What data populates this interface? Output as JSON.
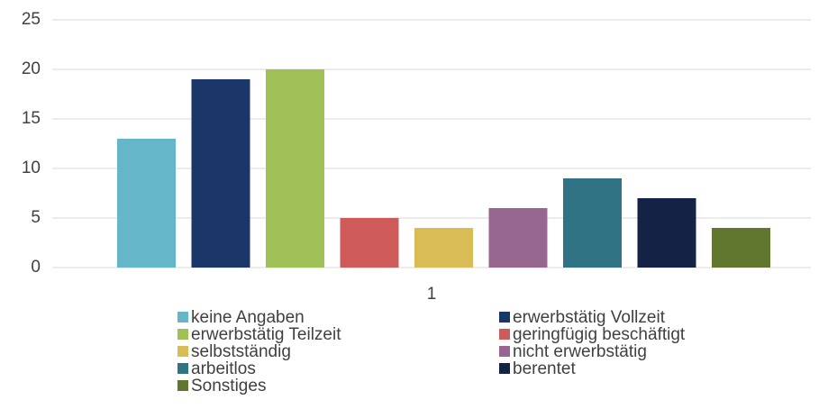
{
  "chart_data": {
    "type": "bar",
    "categories": [
      "1"
    ],
    "series": [
      {
        "name": "keine Angaben",
        "color": "#65b6c9",
        "values": [
          13
        ]
      },
      {
        "name": "erwerbstätig Vollzeit",
        "color": "#1b3669",
        "values": [
          19
        ]
      },
      {
        "name": "erwerbstätig Teilzeit",
        "color": "#9fc054",
        "values": [
          20
        ]
      },
      {
        "name": "geringfügig beschäftigt",
        "color": "#cf5a5a",
        "values": [
          5
        ]
      },
      {
        "name": "selbstständig",
        "color": "#d9bc55",
        "values": [
          4
        ]
      },
      {
        "name": "nicht erwerbstätig",
        "color": "#986790",
        "values": [
          6
        ]
      },
      {
        "name": "arbeitlos",
        "color": "#2f7385",
        "values": [
          9
        ]
      },
      {
        "name": "berentet",
        "color": "#142345",
        "values": [
          7
        ]
      },
      {
        "name": "Sonstiges",
        "color": "#61762e",
        "values": [
          4
        ]
      }
    ],
    "ylim": [
      0,
      25
    ],
    "yticks": [
      0,
      5,
      10,
      15,
      20,
      25
    ],
    "grid": true,
    "legend": "bottom"
  }
}
